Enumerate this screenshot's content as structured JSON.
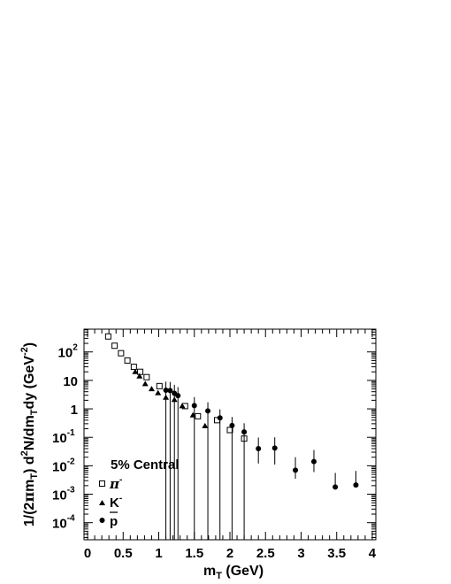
{
  "chart_data": {
    "type": "scatter",
    "title": "",
    "annotation": "5% Central",
    "xlabel_main": "m",
    "xlabel_sub": "T",
    "xlabel_unit": " (GeV)",
    "ylabel": {
      "p1": "1/(2",
      "pi": "π",
      "p2": "m",
      "sub1": "T",
      "p3": ") d",
      "sup1": "2",
      "p4": "N/dm",
      "sub2": "T",
      "p5": "dy (GeV",
      "sup2": "-2",
      "p6": ")"
    },
    "xlim": [
      -0.05,
      4.05
    ],
    "ylim_log10": [
      -4.6,
      2.8
    ],
    "x_scale": "linear",
    "y_scale": "log",
    "grid": false,
    "x_ticks": [
      0,
      0.5,
      1,
      1.5,
      2,
      2.5,
      3,
      3.5,
      4
    ],
    "x_tick_labels": [
      "0",
      "0.5",
      "1",
      "1.5",
      "2",
      "2.5",
      "3",
      "3.5",
      "4"
    ],
    "y_tick_labels": [
      {
        "exp": -4,
        "base": "10",
        "sup": "-4"
      },
      {
        "exp": -3,
        "base": "10",
        "sup": "-3"
      },
      {
        "exp": -2,
        "base": "10",
        "sup": "-2"
      },
      {
        "exp": -1,
        "base": "10",
        "sup": "-1"
      },
      {
        "exp": 0,
        "base": "1",
        "sup": ""
      },
      {
        "exp": 1,
        "base": "10",
        "sup": ""
      },
      {
        "exp": 2,
        "base": "10",
        "sup": "2"
      }
    ],
    "legend_position": "bottom-left",
    "series": [
      {
        "name": "π⁻",
        "label_base": "π",
        "label_sup": "-",
        "marker": "open-square",
        "points": [
          {
            "x": 0.29,
            "y": 350
          },
          {
            "x": 0.38,
            "y": 165
          },
          {
            "x": 0.47,
            "y": 90
          },
          {
            "x": 0.56,
            "y": 50
          },
          {
            "x": 0.65,
            "y": 30
          },
          {
            "x": 0.74,
            "y": 20
          },
          {
            "x": 0.83,
            "y": 13
          },
          {
            "x": 1.01,
            "y": 6.3
          },
          {
            "x": 1.37,
            "y": 1.25
          },
          {
            "x": 1.55,
            "y": 0.55
          },
          {
            "x": 1.82,
            "y": 0.4
          },
          {
            "x": 2.0,
            "y": 0.18
          },
          {
            "x": 2.2,
            "y": 0.09
          }
        ]
      },
      {
        "name": "K⁻",
        "label_base": "K",
        "label_sup": "-",
        "marker": "filled-triangle",
        "points": [
          {
            "x": 0.67,
            "y": 20
          },
          {
            "x": 0.73,
            "y": 14
          },
          {
            "x": 0.81,
            "y": 7.5
          },
          {
            "x": 0.9,
            "y": 5.0
          },
          {
            "x": 0.99,
            "y": 3.6
          },
          {
            "x": 1.1,
            "y": 2.5
          },
          {
            "x": 1.22,
            "y": 2.1
          },
          {
            "x": 1.33,
            "y": 1.25
          },
          {
            "x": 1.48,
            "y": 0.6
          },
          {
            "x": 1.65,
            "y": 0.25
          }
        ]
      },
      {
        "name": "p̄",
        "label_base": "p",
        "label_sup": "",
        "marker": "filled-circle",
        "points": [
          {
            "x": 1.1,
            "y": 4.5,
            "err_lo": 4.5,
            "err_hi": 4.5
          },
          {
            "x": 1.16,
            "y": 4.4,
            "err_lo": 4.4,
            "err_hi": 4.4
          },
          {
            "x": 1.22,
            "y": 3.5,
            "err_lo": 3.5,
            "err_hi": 3.5
          },
          {
            "x": 1.27,
            "y": 2.9,
            "err_lo": 2.9,
            "err_hi": 2.9
          },
          {
            "x": 1.5,
            "y": 1.3,
            "err_lo": 1.3,
            "err_hi": 1.3
          },
          {
            "x": 1.69,
            "y": 0.85,
            "err_lo": 0.85,
            "err_hi": 0.85
          },
          {
            "x": 1.86,
            "y": 0.48,
            "err_lo": 0.48,
            "err_hi": 0.48
          },
          {
            "x": 2.03,
            "y": 0.26,
            "err_lo": 0.26,
            "err_hi": 0.26
          },
          {
            "x": 2.2,
            "y": 0.155,
            "err_lo": 0.155,
            "err_hi": 0.155
          },
          {
            "x": 2.4,
            "y": 0.04,
            "err_lo": 0.028,
            "err_hi": 0.058
          },
          {
            "x": 2.63,
            "y": 0.042,
            "err_lo": 0.031,
            "err_hi": 0.058
          },
          {
            "x": 2.92,
            "y": 0.007,
            "err_lo": 0.0035,
            "err_hi": 0.013
          },
          {
            "x": 3.18,
            "y": 0.014,
            "err_lo": 0.008,
            "err_hi": 0.022
          },
          {
            "x": 3.48,
            "y": 0.0018,
            "err_lo": 1e-05,
            "err_hi": 0.0038
          },
          {
            "x": 3.77,
            "y": 0.0021,
            "err_lo": 1e-05,
            "err_hi": 0.0045
          }
        ]
      }
    ]
  }
}
